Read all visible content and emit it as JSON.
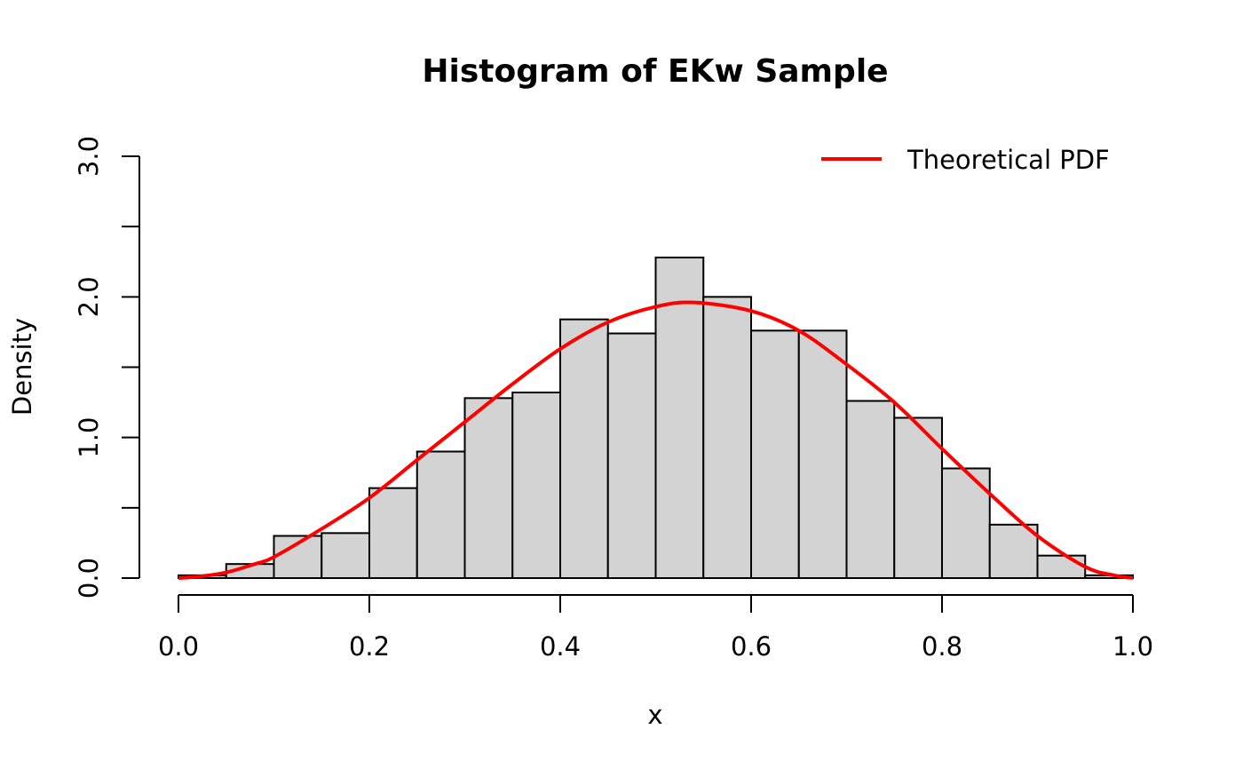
{
  "chart_data": {
    "type": "bar",
    "title": "Histogram of EKw Sample",
    "xlabel": "x",
    "ylabel": "Density",
    "xlim": [
      0,
      1
    ],
    "ylim": [
      0,
      3
    ],
    "bin_width": 0.05,
    "bin_starts": [
      0.0,
      0.05,
      0.1,
      0.15,
      0.2,
      0.25,
      0.3,
      0.35,
      0.4,
      0.45,
      0.5,
      0.55,
      0.6,
      0.65,
      0.7,
      0.75,
      0.8,
      0.85,
      0.9,
      0.95
    ],
    "values": [
      0.02,
      0.1,
      0.3,
      0.32,
      0.64,
      0.9,
      1.28,
      1.32,
      1.84,
      1.74,
      2.28,
      2.0,
      1.76,
      1.76,
      1.26,
      1.14,
      0.78,
      0.38,
      0.16,
      0.02
    ],
    "x_ticks": [
      "0.0",
      "0.2",
      "0.4",
      "0.6",
      "0.8",
      "1.0"
    ],
    "y_ticks": [
      0,
      0.5,
      1.0,
      1.5,
      2.0,
      2.5,
      3.0
    ],
    "y_tick_labels": [
      "0.0",
      "",
      "1.0",
      "",
      "2.0",
      "",
      "3.0"
    ],
    "bar_fill": "#d3d3d3",
    "grid": false,
    "series": [
      {
        "name": "Theoretical PDF",
        "color": "#ff0000",
        "x": [
          0.0,
          0.02,
          0.05,
          0.08,
          0.1,
          0.15,
          0.2,
          0.25,
          0.3,
          0.35,
          0.4,
          0.45,
          0.5,
          0.54,
          0.6,
          0.65,
          0.7,
          0.75,
          0.8,
          0.85,
          0.9,
          0.95,
          0.98,
          1.0
        ],
        "y": [
          0.0,
          0.01,
          0.04,
          0.1,
          0.15,
          0.35,
          0.57,
          0.84,
          1.11,
          1.38,
          1.63,
          1.82,
          1.93,
          1.96,
          1.9,
          1.76,
          1.52,
          1.25,
          0.92,
          0.6,
          0.3,
          0.08,
          0.02,
          0.0
        ]
      }
    ],
    "legend": {
      "position": "top-right",
      "entries": [
        "Theoretical PDF"
      ]
    }
  }
}
